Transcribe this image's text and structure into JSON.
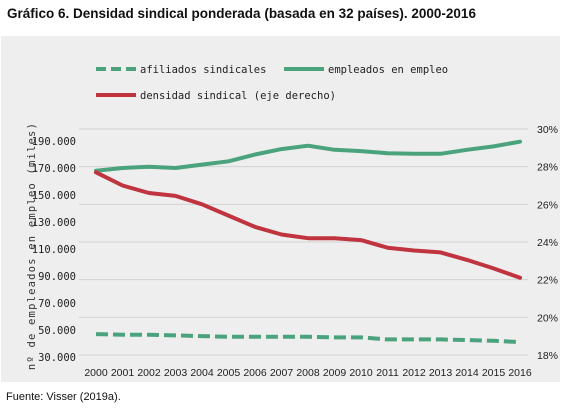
{
  "title": "Gráfico 6. Densidad sindical ponderada (basada en 32 países). 2000-2016",
  "source": "Fuente: Visser (2019a).",
  "chart_data": {
    "type": "line",
    "x": [
      2000,
      2001,
      2002,
      2003,
      2004,
      2005,
      2006,
      2007,
      2008,
      2009,
      2010,
      2011,
      2012,
      2013,
      2014,
      2015,
      2016
    ],
    "x_tick_labels": [
      "2000",
      "2001",
      "2002",
      "2003",
      "2004",
      "2005",
      "2006",
      "2007",
      "2008",
      "2009",
      "2010",
      "2011",
      "2012",
      "2013",
      "2014",
      "2015",
      "2016"
    ],
    "ylabel": "nº de empleados en empleo (miles)",
    "ylim": [
      30000,
      190000
    ],
    "y_tick_labels": [
      "190.000",
      "170.000",
      "150.000",
      "130.000",
      "110.000",
      "90.000",
      "70.000",
      "50.000",
      "30.000"
    ],
    "y2lim": [
      18,
      30
    ],
    "y2_tick_labels": [
      "30%",
      "28%",
      "26%",
      "24%",
      "22%",
      "20%",
      "18%"
    ],
    "grid": "horizontal",
    "legend_position": "top",
    "series": [
      {
        "name": "afiliados sindicales",
        "axis": "left",
        "style": "dashed",
        "color": "#4aa37d",
        "values": [
          47000,
          46500,
          46500,
          46000,
          45500,
          45000,
          45000,
          45000,
          45000,
          44500,
          44500,
          43000,
          43000,
          43000,
          42500,
          42000,
          41000
        ]
      },
      {
        "name": "empleados en empleo",
        "axis": "left",
        "style": "solid",
        "color": "#4aa37d",
        "values": [
          168000,
          170000,
          171000,
          170000,
          172500,
          175000,
          180000,
          184000,
          186500,
          183500,
          182500,
          181000,
          180500,
          180500,
          183500,
          186000,
          189500
        ]
      },
      {
        "name": "densidad sindical (eje derecho)",
        "axis": "right",
        "style": "solid",
        "color": "#c0343f",
        "values": [
          27.7,
          27.0,
          26.6,
          26.45,
          26.0,
          25.4,
          24.8,
          24.4,
          24.2,
          24.2,
          24.1,
          23.7,
          23.55,
          23.45,
          23.05,
          22.6,
          22.1
        ]
      }
    ]
  }
}
